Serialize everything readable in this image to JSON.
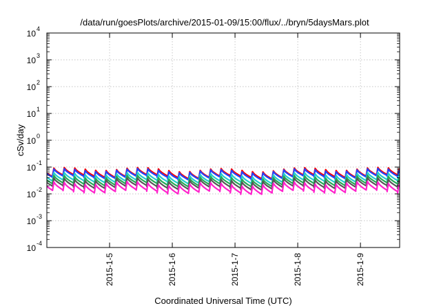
{
  "chart_data": {
    "type": "line",
    "title": "/data/run/goesPlots/archive/2015-01-09/15:00/flux/../bryn/5daysMars.plot",
    "xlabel": "Coordinated Universal Time (UTC)",
    "ylabel": "cSv/day",
    "y_scale": "log",
    "ylim": [
      0.0001,
      10000
    ],
    "y_ticks": [
      {
        "base": "10",
        "exp": "-4",
        "value": 0.0001
      },
      {
        "base": "10",
        "exp": "-3",
        "value": 0.001
      },
      {
        "base": "10",
        "exp": "-2",
        "value": 0.01
      },
      {
        "base": "10",
        "exp": "-1",
        "value": 0.1
      },
      {
        "base": "10",
        "exp": "0",
        "value": 1
      },
      {
        "base": "10",
        "exp": "1",
        "value": 10
      },
      {
        "base": "10",
        "exp": "2",
        "value": 100
      },
      {
        "base": "10",
        "exp": "3",
        "value": 1000
      },
      {
        "base": "10",
        "exp": "4",
        "value": 10000
      }
    ],
    "xlim": [
      "2015-01-04T00:00",
      "2015-01-09T15:00"
    ],
    "x_ticks": [
      "2015-1-5",
      "2015-1-6",
      "2015-1-7",
      "2015-1-8",
      "2015-1-9"
    ],
    "x_tick_dates": [
      "2015-01-05",
      "2015-01-06",
      "2015-01-07",
      "2015-01-08",
      "2015-01-09"
    ],
    "grid": true,
    "legend": "none",
    "pattern": "sawtooth, 4-hour period: sharp rise at each cycle start followed by gradual decay",
    "cycle_hours": 4,
    "series": [
      {
        "color": "#ff0000",
        "peak": 0.088,
        "trough": 0.048
      },
      {
        "color": "#2244ff",
        "peak": 0.08,
        "trough": 0.044
      },
      {
        "color": "#22cccc",
        "peak": 0.058,
        "trough": 0.031
      },
      {
        "color": "#22aa55",
        "peak": 0.045,
        "trough": 0.024
      },
      {
        "color": "#555555",
        "peak": 0.036,
        "trough": 0.019
      },
      {
        "color": "#ff22cc",
        "peak": 0.026,
        "trough": 0.013
      }
    ]
  }
}
